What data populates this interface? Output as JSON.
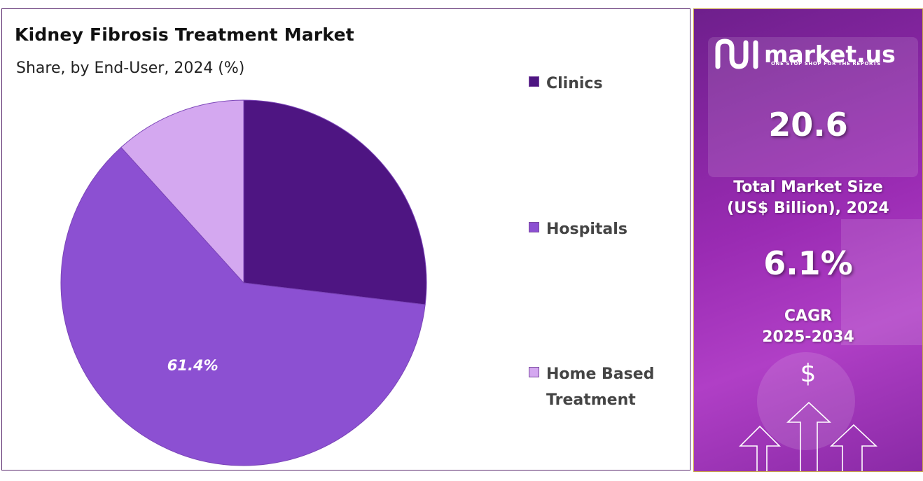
{
  "chart_data": {
    "type": "pie",
    "title": "Kidney Fibrosis Treatment Market",
    "subtitle": "Share, by End-User, 2024 (%)",
    "series": [
      {
        "name": "Clinics",
        "value": 26.9,
        "color": "#4e1582"
      },
      {
        "name": "Hospitals",
        "value": 61.4,
        "color": "#8c50d2",
        "label": "61.4%"
      },
      {
        "name": "Home Based Treatment",
        "value": 11.7,
        "color": "#d4a8f0"
      }
    ],
    "legend_position": "right"
  },
  "legend": {
    "items": [
      {
        "line1": "Clinics",
        "line2": ""
      },
      {
        "line1": "Hospitals",
        "line2": ""
      },
      {
        "line1": "Home Based",
        "line2": "Treatment"
      }
    ]
  },
  "side": {
    "brand_name": "market.us",
    "brand_tagline": "ONE STOP SHOP FOR THE REPORTS",
    "market_size_value": "20.6",
    "market_size_label_1": "Total Market Size",
    "market_size_label_2": "(US$ Billion), 2024",
    "cagr_value": "6.1%",
    "cagr_label_1": "CAGR",
    "cagr_label_2": "2025-2034",
    "dollar_icon": "$",
    "icons": [
      "brand-logo-icon",
      "dollar-icon",
      "up-arrows-icon"
    ]
  }
}
